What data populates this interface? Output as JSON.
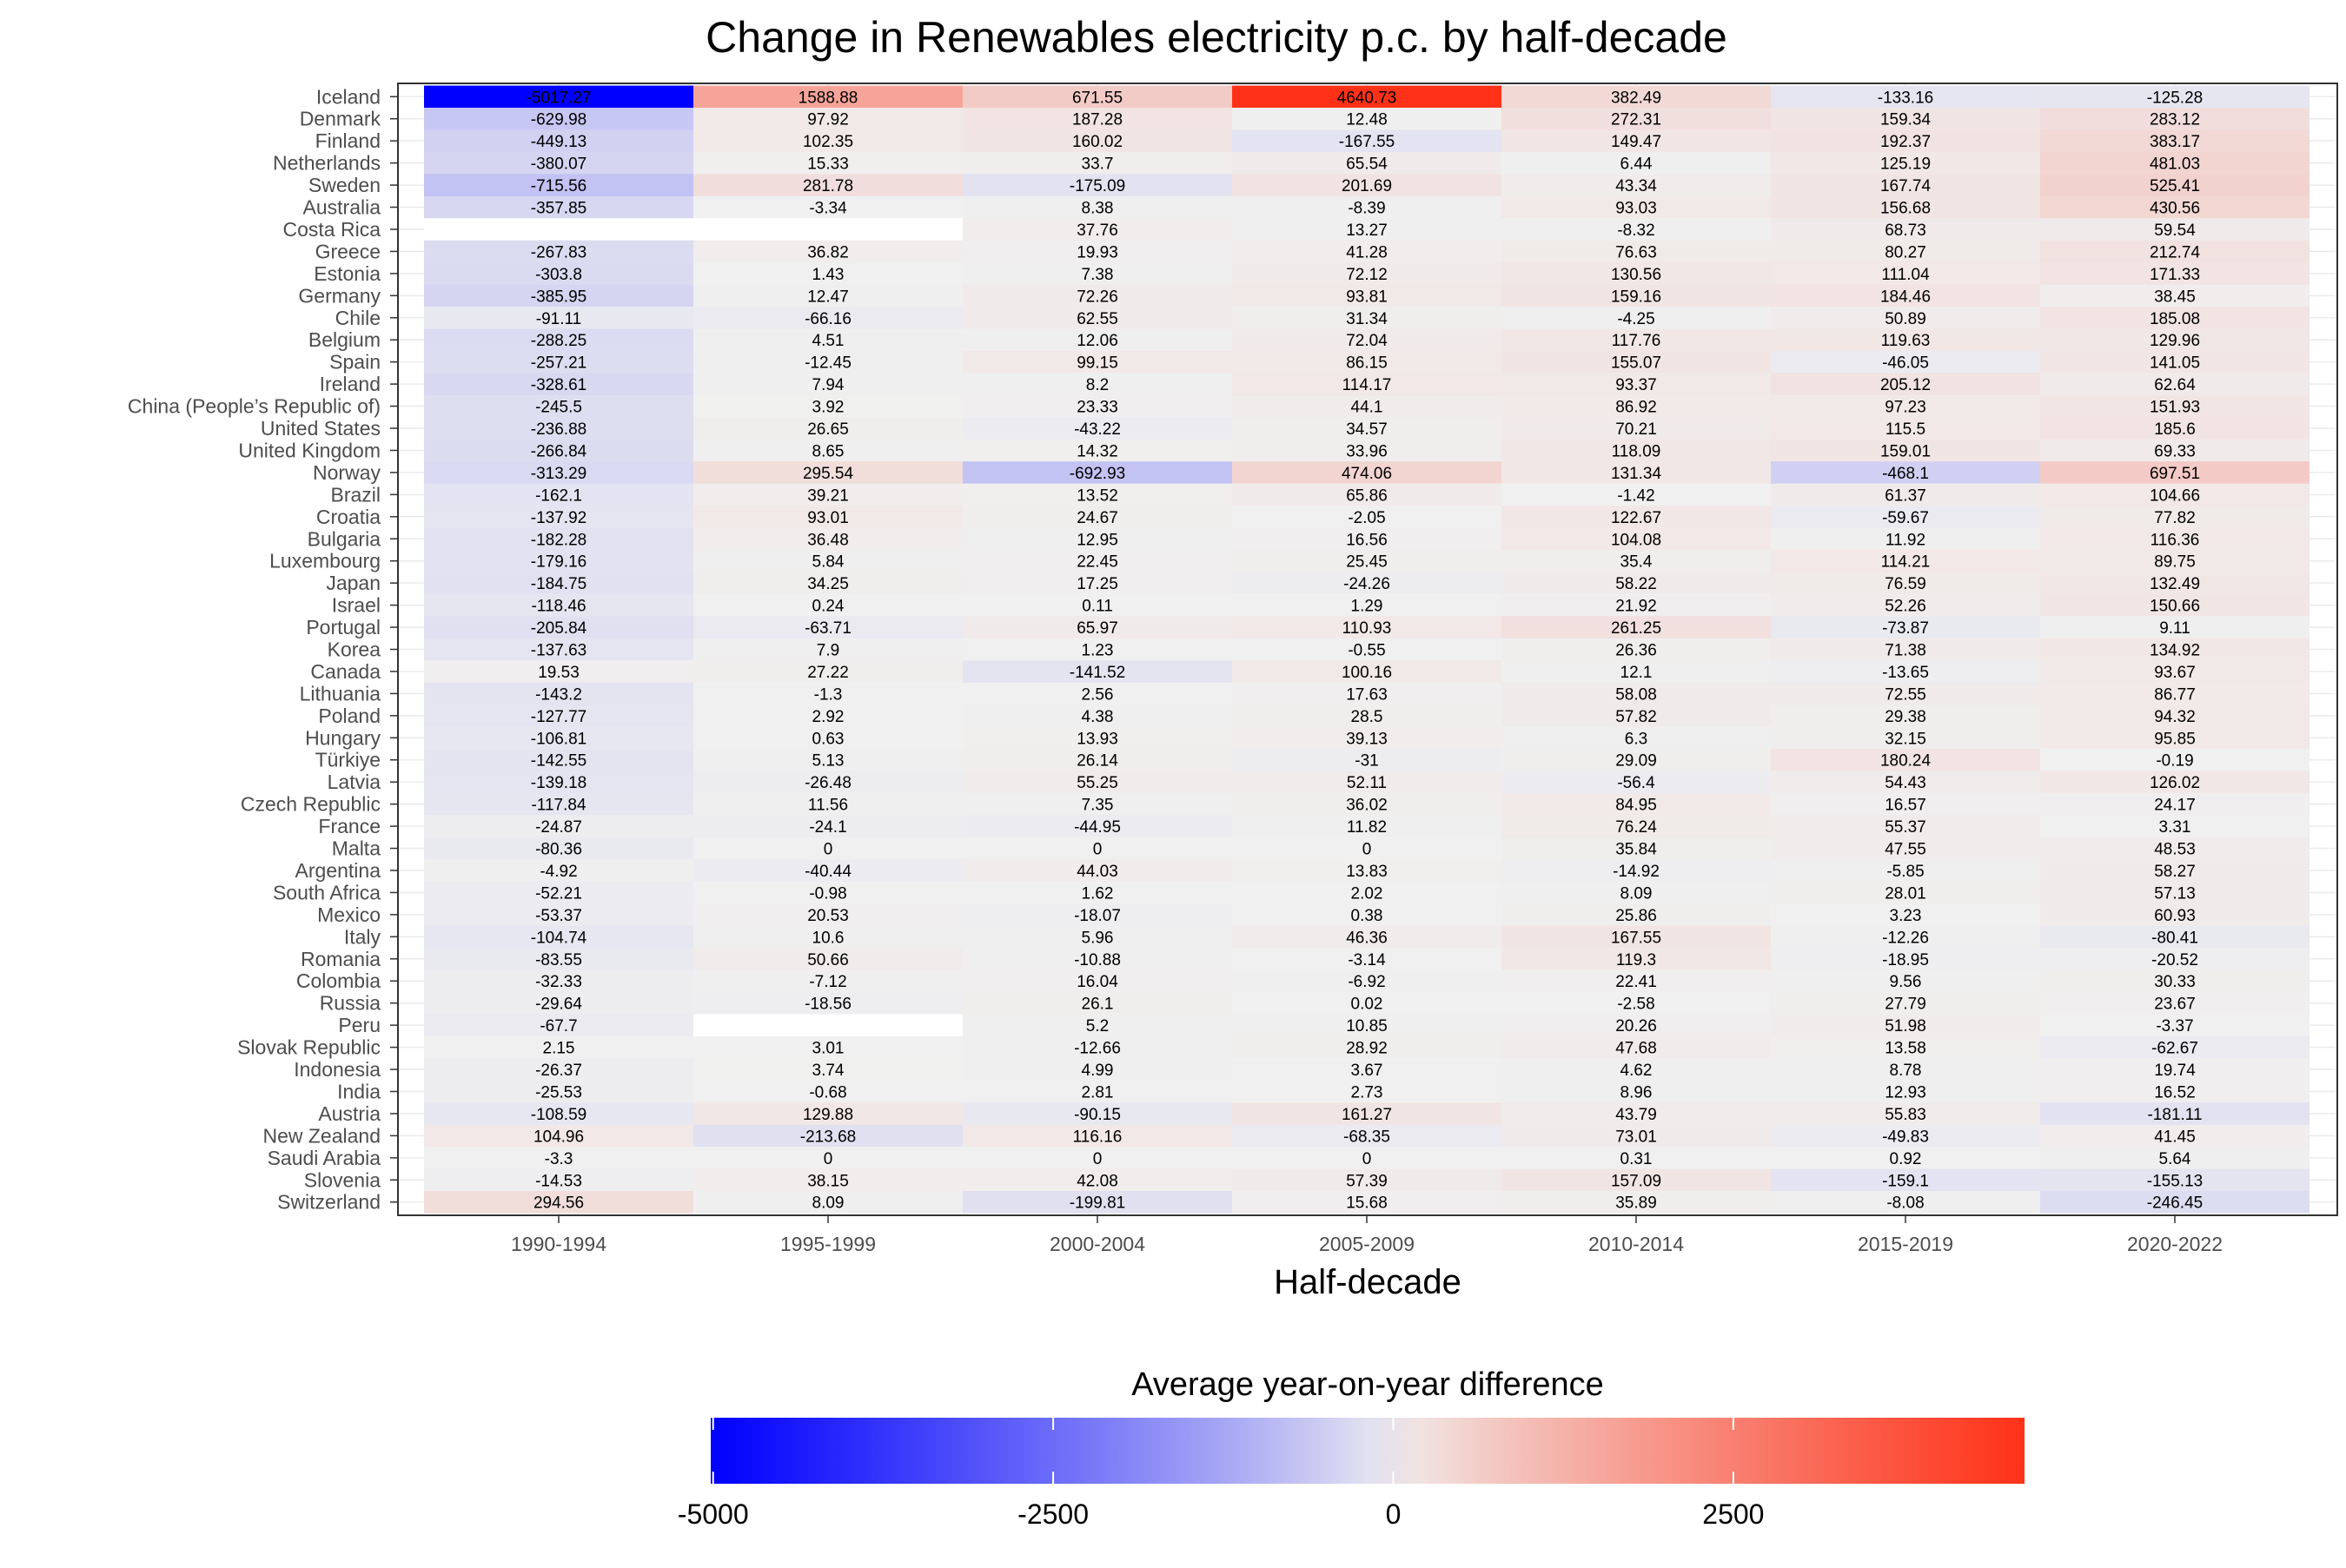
{
  "chart_data": {
    "type": "heatmap",
    "title": "Change in Renewables electricity p.c. by half-decade",
    "xlabel": "Half-decade",
    "ylabel": "",
    "legend_title": "Average year-on-year difference",
    "legend_placement": "bottom",
    "legend_ticks": [
      -5000,
      -2500,
      0,
      2500
    ],
    "color_scale": {
      "min": -5017.27,
      "mid": 0,
      "max": 4640.73,
      "low_color": "#0000ff",
      "mid_color": "#f0f0f0",
      "high_color": "#ff3218",
      "missing_color": "#ffffff"
    },
    "grid": true,
    "columns": [
      "1990-1994",
      "1995-1999",
      "2000-2004",
      "2005-2009",
      "2010-2014",
      "2015-2019",
      "2020-2022"
    ],
    "rows": [
      {
        "country": "Iceland",
        "values": [
          -5017.27,
          1588.88,
          671.55,
          4640.73,
          382.49,
          -133.16,
          -125.28
        ]
      },
      {
        "country": "Denmark",
        "values": [
          -629.98,
          97.92,
          187.28,
          12.48,
          272.31,
          159.34,
          283.12
        ]
      },
      {
        "country": "Finland",
        "values": [
          -449.13,
          102.35,
          160.02,
          -167.55,
          149.47,
          192.37,
          383.17
        ]
      },
      {
        "country": "Netherlands",
        "values": [
          -380.07,
          15.33,
          33.7,
          65.54,
          6.44,
          125.19,
          481.03
        ]
      },
      {
        "country": "Sweden",
        "values": [
          -715.56,
          281.78,
          -175.09,
          201.69,
          43.34,
          167.74,
          525.41
        ]
      },
      {
        "country": "Australia",
        "values": [
          -357.85,
          -3.34,
          8.38,
          -8.39,
          93.03,
          156.68,
          430.56
        ]
      },
      {
        "country": "Costa Rica",
        "values": [
          null,
          null,
          37.76,
          13.27,
          -8.32,
          68.73,
          59.54
        ]
      },
      {
        "country": "Greece",
        "values": [
          -267.83,
          36.82,
          19.93,
          41.28,
          76.63,
          80.27,
          212.74
        ]
      },
      {
        "country": "Estonia",
        "values": [
          -303.8,
          1.43,
          7.38,
          72.12,
          130.56,
          111.04,
          171.33
        ]
      },
      {
        "country": "Germany",
        "values": [
          -385.95,
          12.47,
          72.26,
          93.81,
          159.16,
          184.46,
          38.45
        ]
      },
      {
        "country": "Chile",
        "values": [
          -91.11,
          -66.16,
          62.55,
          31.34,
          -4.25,
          50.89,
          185.08
        ]
      },
      {
        "country": "Belgium",
        "values": [
          -288.25,
          4.51,
          12.06,
          72.04,
          117.76,
          119.63,
          129.96
        ]
      },
      {
        "country": "Spain",
        "values": [
          -257.21,
          -12.45,
          99.15,
          86.15,
          155.07,
          -46.05,
          141.05
        ]
      },
      {
        "country": "Ireland",
        "values": [
          -328.61,
          7.94,
          8.2,
          114.17,
          93.37,
          205.12,
          62.64
        ]
      },
      {
        "country": "China (People’s Republic of)",
        "values": [
          -245.5,
          3.92,
          23.33,
          44.1,
          86.92,
          97.23,
          151.93
        ]
      },
      {
        "country": "United States",
        "values": [
          -236.88,
          26.65,
          -43.22,
          34.57,
          70.21,
          115.5,
          185.6
        ]
      },
      {
        "country": "United Kingdom",
        "values": [
          -266.84,
          8.65,
          14.32,
          33.96,
          118.09,
          159.01,
          69.33
        ]
      },
      {
        "country": "Norway",
        "values": [
          -313.29,
          295.54,
          -692.93,
          474.06,
          131.34,
          -468.1,
          697.51
        ]
      },
      {
        "country": "Brazil",
        "values": [
          -162.1,
          39.21,
          13.52,
          65.86,
          -1.42,
          61.37,
          104.66
        ]
      },
      {
        "country": "Croatia",
        "values": [
          -137.92,
          93.01,
          24.67,
          -2.05,
          122.67,
          -59.67,
          77.82
        ]
      },
      {
        "country": "Bulgaria",
        "values": [
          -182.28,
          36.48,
          12.95,
          16.56,
          104.08,
          11.92,
          116.36
        ]
      },
      {
        "country": "Luxembourg",
        "values": [
          -179.16,
          5.84,
          22.45,
          25.45,
          35.4,
          114.21,
          89.75
        ]
      },
      {
        "country": "Japan",
        "values": [
          -184.75,
          34.25,
          17.25,
          -24.26,
          58.22,
          76.59,
          132.49
        ]
      },
      {
        "country": "Israel",
        "values": [
          -118.46,
          0.24,
          0.11,
          1.29,
          21.92,
          52.26,
          150.66
        ]
      },
      {
        "country": "Portugal",
        "values": [
          -205.84,
          -63.71,
          65.97,
          110.93,
          261.25,
          -73.87,
          9.11
        ]
      },
      {
        "country": "Korea",
        "values": [
          -137.63,
          7.9,
          1.23,
          -0.55,
          26.36,
          71.38,
          134.92
        ]
      },
      {
        "country": "Canada",
        "values": [
          19.53,
          27.22,
          -141.52,
          100.16,
          12.1,
          -13.65,
          93.67
        ]
      },
      {
        "country": "Lithuania",
        "values": [
          -143.2,
          -1.3,
          2.56,
          17.63,
          58.08,
          72.55,
          86.77
        ]
      },
      {
        "country": "Poland",
        "values": [
          -127.77,
          2.92,
          4.38,
          28.5,
          57.82,
          29.38,
          94.32
        ]
      },
      {
        "country": "Hungary",
        "values": [
          -106.81,
          0.63,
          13.93,
          39.13,
          6.3,
          32.15,
          95.85
        ]
      },
      {
        "country": "Türkiye",
        "values": [
          -142.55,
          5.13,
          26.14,
          -31,
          29.09,
          180.24,
          -0.19
        ]
      },
      {
        "country": "Latvia",
        "values": [
          -139.18,
          -26.48,
          55.25,
          52.11,
          -56.4,
          54.43,
          126.02
        ]
      },
      {
        "country": "Czech Republic",
        "values": [
          -117.84,
          11.56,
          7.35,
          36.02,
          84.95,
          16.57,
          24.17
        ]
      },
      {
        "country": "France",
        "values": [
          -24.87,
          -24.1,
          -44.95,
          11.82,
          76.24,
          55.37,
          3.31
        ]
      },
      {
        "country": "Malta",
        "values": [
          -80.36,
          0,
          0,
          0,
          35.84,
          47.55,
          48.53
        ]
      },
      {
        "country": "Argentina",
        "values": [
          -4.92,
          -40.44,
          44.03,
          13.83,
          -14.92,
          -5.85,
          58.27
        ]
      },
      {
        "country": "South Africa",
        "values": [
          -52.21,
          -0.98,
          1.62,
          2.02,
          8.09,
          28.01,
          57.13
        ]
      },
      {
        "country": "Mexico",
        "values": [
          -53.37,
          20.53,
          -18.07,
          0.38,
          25.86,
          3.23,
          60.93
        ]
      },
      {
        "country": "Italy",
        "values": [
          -104.74,
          10.6,
          5.96,
          46.36,
          167.55,
          -12.26,
          -80.41
        ]
      },
      {
        "country": "Romania",
        "values": [
          -83.55,
          50.66,
          -10.88,
          -3.14,
          119.3,
          -18.95,
          -20.52
        ]
      },
      {
        "country": "Colombia",
        "values": [
          -32.33,
          -7.12,
          16.04,
          -6.92,
          22.41,
          9.56,
          30.33
        ]
      },
      {
        "country": "Russia",
        "values": [
          -29.64,
          -18.56,
          26.1,
          0.02,
          -2.58,
          27.79,
          23.67
        ]
      },
      {
        "country": "Peru",
        "values": [
          -67.7,
          null,
          5.2,
          10.85,
          20.26,
          51.98,
          -3.37
        ]
      },
      {
        "country": "Slovak Republic",
        "values": [
          2.15,
          3.01,
          -12.66,
          28.92,
          47.68,
          13.58,
          -62.67
        ]
      },
      {
        "country": "Indonesia",
        "values": [
          -26.37,
          3.74,
          4.99,
          3.67,
          4.62,
          8.78,
          19.74
        ]
      },
      {
        "country": "India",
        "values": [
          -25.53,
          -0.68,
          2.81,
          2.73,
          8.96,
          12.93,
          16.52
        ]
      },
      {
        "country": "Austria",
        "values": [
          -108.59,
          129.88,
          -90.15,
          161.27,
          43.79,
          55.83,
          -181.11
        ]
      },
      {
        "country": "New Zealand",
        "values": [
          104.96,
          -213.68,
          116.16,
          -68.35,
          73.01,
          -49.83,
          41.45
        ]
      },
      {
        "country": "Saudi Arabia",
        "values": [
          -3.3,
          0,
          0,
          0,
          0.31,
          0.92,
          5.64
        ]
      },
      {
        "country": "Slovenia",
        "values": [
          -14.53,
          38.15,
          42.08,
          57.39,
          157.09,
          -159.1,
          -155.13
        ]
      },
      {
        "country": "Switzerland",
        "values": [
          294.56,
          8.09,
          -199.81,
          15.68,
          35.89,
          -8.08,
          -246.45
        ]
      }
    ]
  }
}
